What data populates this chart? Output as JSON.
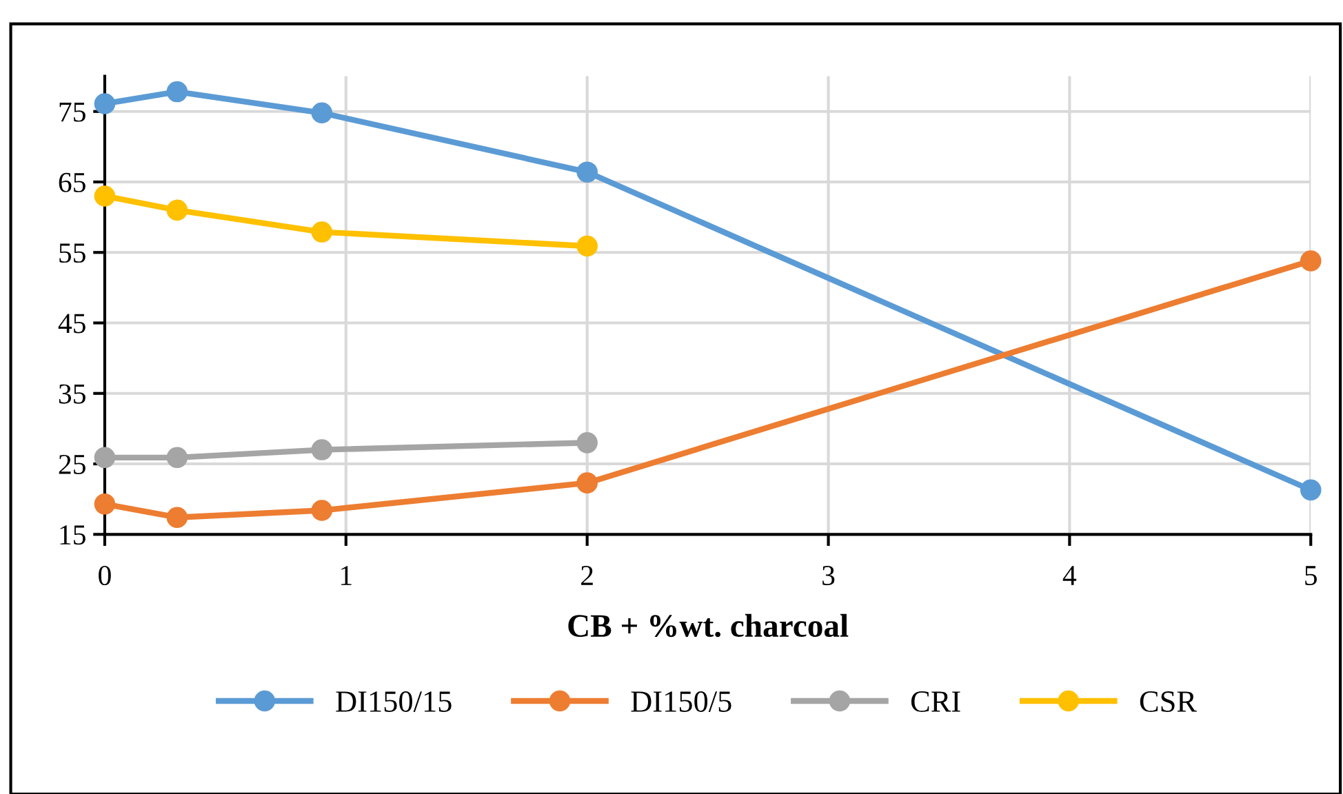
{
  "chart_data": {
    "type": "line",
    "xlabel": "CB + %wt. charcoal",
    "xlim": [
      0,
      5
    ],
    "xticks": [
      0,
      1,
      2,
      3,
      4,
      5
    ],
    "ylim": [
      15,
      80
    ],
    "yticks": [
      15,
      25,
      35,
      45,
      55,
      65,
      75
    ],
    "grid": true,
    "legend": "bottom",
    "marker": "circle",
    "line_style": "solid",
    "series": [
      {
        "name": "DI150/15",
        "color": "#5b9bd5",
        "x": [
          0,
          0.3,
          0.9,
          2,
          5
        ],
        "values": [
          76.1,
          77.8,
          74.8,
          66.4,
          21.3
        ]
      },
      {
        "name": "DI150/5",
        "color": "#ed7d31",
        "x": [
          0,
          0.3,
          0.9,
          2,
          5
        ],
        "values": [
          19.3,
          17.4,
          18.4,
          22.3,
          53.8
        ]
      },
      {
        "name": "CRI",
        "color": "#a5a5a5",
        "x": [
          0,
          0.3,
          0.9,
          2
        ],
        "values": [
          25.9,
          25.9,
          27.0,
          28.0
        ]
      },
      {
        "name": "CSR",
        "color": "#ffc000",
        "x": [
          0,
          0.3,
          0.9,
          2
        ],
        "values": [
          63.0,
          61.0,
          57.9,
          55.9
        ]
      }
    ]
  }
}
